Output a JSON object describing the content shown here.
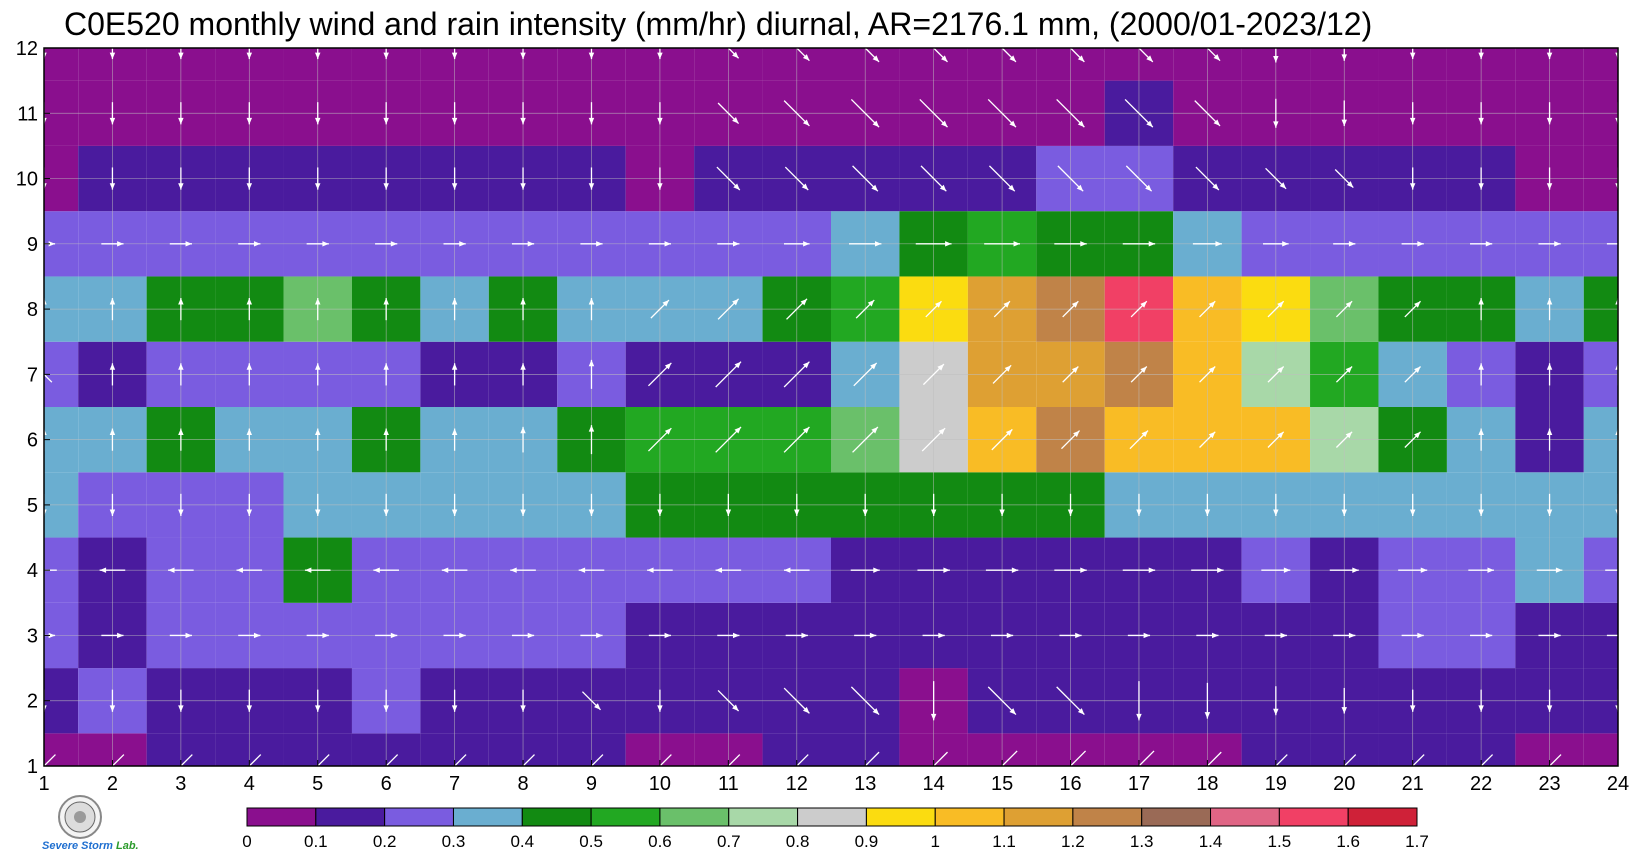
{
  "title": "C0E520 monthly wind and rain intensity (mm/hr) diurnal, AR=2176.1 mm, (2000/01-2023/12)",
  "chart_data": {
    "type": "heatmap",
    "title": "C0E520 monthly wind and rain intensity (mm/hr) diurnal, AR=2176.1 mm, (2000/01-2023/12)",
    "xlabel": "",
    "ylabel": "",
    "x_ticks": [
      1,
      2,
      3,
      4,
      5,
      6,
      7,
      8,
      9,
      10,
      11,
      12,
      13,
      14,
      15,
      16,
      17,
      18,
      19,
      20,
      21,
      22,
      23,
      24
    ],
    "y_ticks": [
      1,
      2,
      3,
      4,
      5,
      6,
      7,
      8,
      9,
      10,
      11,
      12
    ],
    "xlim": [
      1,
      24
    ],
    "ylim": [
      1,
      12
    ],
    "colorbar": {
      "levels": [
        0,
        0.1,
        0.2,
        0.3,
        0.4,
        0.5,
        0.6,
        0.7,
        0.8,
        0.9,
        1,
        1.1,
        1.2,
        1.3,
        1.4,
        1.5,
        1.6,
        1.7
      ],
      "labels": [
        "0",
        "0.1",
        "0.2",
        "0.3",
        "0.4",
        "0.5",
        "0.6",
        "0.7",
        "0.8",
        "0.9",
        "1",
        "1.1",
        "1.2",
        "1.3",
        "1.4",
        "1.5",
        "1.6",
        "1.7"
      ],
      "colors": [
        "#8a0f8e",
        "#4a1b9e",
        "#7a5ce0",
        "#6aaed0",
        "#128a12",
        "#22a822",
        "#6ac06a",
        "#a8d8a8",
        "#cccccc",
        "#fbdc10",
        "#f9bc25",
        "#dea033",
        "#c08348",
        "#9a6a56",
        "#e06585",
        "#f14065",
        "#cf2138"
      ]
    },
    "values": [
      [
        0.05,
        0.05,
        0.1,
        0.1,
        0.1,
        0.1,
        0.1,
        0.1,
        0.1,
        0.05,
        0.05,
        0.1,
        0.1,
        0.05,
        0.05,
        0.05,
        0.05,
        0.05,
        0.1,
        0.1,
        0.1,
        0.1,
        0.05,
        0.05
      ],
      [
        0.15,
        0.25,
        0.15,
        0.15,
        0.15,
        0.2,
        0.15,
        0.15,
        0.15,
        0.15,
        0.15,
        0.15,
        0.15,
        0.05,
        0.1,
        0.1,
        0.1,
        0.1,
        0.15,
        0.15,
        0.15,
        0.15,
        0.15,
        0.15
      ],
      [
        0.2,
        0.15,
        0.25,
        0.25,
        0.25,
        0.25,
        0.25,
        0.25,
        0.2,
        0.15,
        0.15,
        0.15,
        0.15,
        0.15,
        0.15,
        0.15,
        0.15,
        0.15,
        0.15,
        0.15,
        0.2,
        0.25,
        0.15,
        0.15
      ],
      [
        0.25,
        0.15,
        0.25,
        0.25,
        0.45,
        0.25,
        0.25,
        0.25,
        0.25,
        0.25,
        0.25,
        0.25,
        0.15,
        0.15,
        0.15,
        0.15,
        0.15,
        0.15,
        0.25,
        0.15,
        0.25,
        0.25,
        0.35,
        0.25
      ],
      [
        0.3,
        0.25,
        0.25,
        0.25,
        0.35,
        0.35,
        0.35,
        0.35,
        0.35,
        0.45,
        0.45,
        0.4,
        0.45,
        0.45,
        0.45,
        0.45,
        0.35,
        0.35,
        0.35,
        0.35,
        0.35,
        0.35,
        0.35,
        0.35
      ],
      [
        0.35,
        0.35,
        0.45,
        0.35,
        0.35,
        0.45,
        0.35,
        0.35,
        0.45,
        0.55,
        0.55,
        0.55,
        0.65,
        0.85,
        1.0,
        1.25,
        1.05,
        1.05,
        1.0,
        0.75,
        0.45,
        0.35,
        0.15,
        0.35
      ],
      [
        0.25,
        0.15,
        0.25,
        0.25,
        0.25,
        0.25,
        0.15,
        0.15,
        0.25,
        0.15,
        0.15,
        0.15,
        0.35,
        0.85,
        1.1,
        1.15,
        1.2,
        1.0,
        0.75,
        0.55,
        0.35,
        0.25,
        0.15,
        0.25
      ],
      [
        0.35,
        0.35,
        0.45,
        0.45,
        0.65,
        0.45,
        0.35,
        0.45,
        0.35,
        0.35,
        0.35,
        0.45,
        0.55,
        0.95,
        1.15,
        1.25,
        1.55,
        1.05,
        0.95,
        0.65,
        0.45,
        0.45,
        0.35,
        0.45
      ],
      [
        0.25,
        0.25,
        0.25,
        0.25,
        0.25,
        0.25,
        0.25,
        0.25,
        0.25,
        0.25,
        0.25,
        0.25,
        0.35,
        0.45,
        0.55,
        0.45,
        0.45,
        0.35,
        0.25,
        0.25,
        0.25,
        0.25,
        0.25,
        0.25
      ],
      [
        0.05,
        0.15,
        0.15,
        0.15,
        0.15,
        0.15,
        0.15,
        0.15,
        0.15,
        0.05,
        0.15,
        0.15,
        0.15,
        0.15,
        0.15,
        0.25,
        0.25,
        0.15,
        0.15,
        0.15,
        0.15,
        0.15,
        0.05,
        0.05
      ],
      [
        0.05,
        0.05,
        0.05,
        0.05,
        0.05,
        0.05,
        0.05,
        0.05,
        0.05,
        0.05,
        0.05,
        0.05,
        0.05,
        0.05,
        0.05,
        0.05,
        0.15,
        0.05,
        0.05,
        0.05,
        0.05,
        0.05,
        0.05,
        0.05
      ],
      [
        0.05,
        0.05,
        0.05,
        0.05,
        0.05,
        0.05,
        0.05,
        0.05,
        0.05,
        0.05,
        0.05,
        0.05,
        0.05,
        0.05,
        0.05,
        0.05,
        0.05,
        0.05,
        0.05,
        0.05,
        0.05,
        0.05,
        0.05,
        0.05
      ]
    ],
    "wind_u": [
      [
        -1,
        -1,
        -1,
        -1,
        -1,
        -1,
        -1,
        -1,
        -1,
        -1,
        -1,
        -1,
        -1,
        -1,
        -1,
        -1,
        -1,
        -1,
        -1,
        -1,
        -1,
        -1,
        -1,
        -1
      ],
      [
        0,
        0,
        0,
        0,
        0,
        0,
        0,
        0,
        1,
        0,
        1,
        1,
        1,
        0,
        1,
        1,
        0,
        0,
        0,
        0,
        0,
        0,
        0,
        0
      ],
      [
        1,
        1,
        1,
        1,
        1,
        1,
        1,
        1,
        1,
        1,
        1,
        1,
        1,
        1,
        1,
        1,
        1,
        1,
        1,
        1,
        1,
        1,
        1,
        1
      ],
      [
        -1,
        -1,
        -1,
        -1,
        -1,
        -1,
        -1,
        -1,
        -1,
        -1,
        -1,
        -1,
        1,
        1,
        1,
        1,
        1,
        1,
        1,
        1,
        1,
        1,
        1,
        1
      ],
      [
        0,
        0,
        0,
        0,
        0,
        0,
        0,
        0,
        0,
        0,
        0,
        0,
        0,
        0,
        0,
        0,
        0,
        0,
        0,
        0,
        0,
        0,
        0,
        0
      ],
      [
        0,
        0,
        0,
        0,
        0,
        0,
        0,
        0,
        0,
        1,
        1,
        1,
        1,
        1,
        1,
        1,
        1,
        1,
        1,
        1,
        1,
        0,
        0,
        0
      ],
      [
        -1,
        0,
        0,
        0,
        0,
        0,
        0,
        0,
        0,
        1,
        1,
        1,
        1,
        1,
        1,
        1,
        1,
        1,
        1,
        1,
        1,
        0,
        0,
        0
      ],
      [
        0,
        0,
        0,
        0,
        0,
        0,
        0,
        0,
        0,
        1,
        1,
        1,
        1,
        1,
        1,
        1,
        1,
        1,
        1,
        1,
        1,
        0,
        0,
        0
      ],
      [
        1,
        1,
        1,
        1,
        1,
        1,
        1,
        1,
        1,
        1,
        1,
        1,
        1,
        1,
        1,
        1,
        1,
        1,
        1,
        1,
        1,
        1,
        1,
        1
      ],
      [
        0,
        0,
        0,
        0,
        0,
        0,
        0,
        0,
        0,
        0,
        1,
        1,
        1,
        1,
        1,
        1,
        1,
        1,
        1,
        1,
        0,
        0,
        0,
        0
      ],
      [
        0,
        0,
        0,
        0,
        0,
        0,
        0,
        0,
        0,
        0,
        1,
        1,
        1,
        1,
        1,
        1,
        1,
        1,
        0,
        0,
        0,
        0,
        0,
        0
      ],
      [
        0,
        0,
        0,
        0,
        0,
        0,
        0,
        0,
        0,
        0,
        1,
        1,
        1,
        1,
        1,
        1,
        1,
        1,
        0,
        0,
        0,
        0,
        0,
        0
      ]
    ],
    "wind_v": [
      [
        -1,
        -1,
        -1,
        -1,
        -1,
        -1,
        -1,
        -1,
        -1,
        -1,
        -1,
        -1,
        -1,
        -1,
        -1,
        -1,
        -1,
        -1,
        -1,
        -1,
        -1,
        -1,
        -1,
        -1
      ],
      [
        -1,
        -1,
        -1,
        -1,
        -1,
        -1,
        -1,
        -1,
        -1,
        -1,
        -1,
        -1,
        -1,
        -1,
        -1,
        -1,
        -1,
        -1,
        -1,
        -1,
        -1,
        -1,
        -1,
        -1
      ],
      [
        0,
        0,
        0,
        0,
        0,
        0,
        0,
        0,
        0,
        0,
        0,
        0,
        0,
        0,
        0,
        0,
        0,
        0,
        0,
        0,
        0,
        0,
        0,
        0
      ],
      [
        0,
        0,
        0,
        0,
        0,
        0,
        0,
        0,
        0,
        0,
        0,
        0,
        0,
        0,
        0,
        0,
        0,
        0,
        0,
        0,
        0,
        0,
        0,
        0
      ],
      [
        -1,
        -1,
        -1,
        -1,
        -1,
        -1,
        -1,
        -1,
        -1,
        -1,
        -1,
        -1,
        -1,
        -1,
        -1,
        -1,
        -1,
        -1,
        -1,
        -1,
        -1,
        -1,
        -1,
        -1
      ],
      [
        1,
        1,
        1,
        1,
        1,
        1,
        1,
        1,
        1,
        1,
        1,
        1,
        1,
        1,
        1,
        1,
        1,
        1,
        1,
        1,
        1,
        1,
        1,
        1
      ],
      [
        1,
        1,
        1,
        1,
        1,
        1,
        1,
        1,
        1,
        1,
        1,
        1,
        1,
        1,
        1,
        1,
        1,
        1,
        1,
        1,
        1,
        1,
        1,
        1
      ],
      [
        1,
        1,
        1,
        1,
        1,
        1,
        1,
        1,
        1,
        1,
        1,
        1,
        1,
        1,
        1,
        1,
        1,
        1,
        1,
        1,
        1,
        1,
        1,
        1
      ],
      [
        0,
        0,
        0,
        0,
        0,
        0,
        0,
        0,
        0,
        0,
        0,
        0,
        0,
        0,
        0,
        0,
        0,
        0,
        0,
        0,
        0,
        0,
        0,
        0
      ],
      [
        -1,
        -1,
        -1,
        -1,
        -1,
        -1,
        -1,
        -1,
        -1,
        -1,
        -1,
        -1,
        -1,
        -1,
        -1,
        -1,
        -1,
        -1,
        -1,
        -1,
        -1,
        -1,
        -1,
        -1
      ],
      [
        -1,
        -1,
        -1,
        -1,
        -1,
        -1,
        -1,
        -1,
        -1,
        -1,
        -1,
        -1,
        -1,
        -1,
        -1,
        -1,
        -1,
        -1,
        -1,
        -1,
        -1,
        -1,
        -1,
        -1
      ],
      [
        -1,
        -1,
        -1,
        -1,
        -1,
        -1,
        -1,
        -1,
        -1,
        -1,
        -1,
        -1,
        -1,
        -1,
        -1,
        -1,
        -1,
        -1,
        -1,
        -1,
        -1,
        -1,
        -1,
        -1
      ]
    ],
    "wind_scale": [
      [
        0.6,
        0.6,
        0.6,
        0.6,
        0.6,
        0.6,
        0.6,
        0.6,
        0.6,
        0.6,
        0.6,
        0.6,
        0.8,
        0.8,
        0.9,
        0.9,
        0.9,
        0.8,
        0.6,
        0.6,
        0.6,
        0.6,
        0.6,
        0.6
      ],
      [
        0.3,
        0.3,
        0.3,
        0.3,
        0.3,
        0.3,
        0.3,
        0.3,
        0.4,
        0.3,
        0.5,
        0.7,
        0.8,
        0.8,
        0.8,
        0.8,
        0.8,
        0.7,
        0.5,
        0.4,
        0.3,
        0.3,
        0.3,
        0.3
      ],
      [
        0.3,
        0.3,
        0.3,
        0.3,
        0.3,
        0.3,
        0.3,
        0.3,
        0.3,
        0.3,
        0.3,
        0.3,
        0.3,
        0.3,
        0.3,
        0.3,
        0.3,
        0.3,
        0.3,
        0.3,
        0.3,
        0.3,
        0.3,
        0.3
      ],
      [
        0.4,
        0.4,
        0.4,
        0.4,
        0.4,
        0.4,
        0.4,
        0.4,
        0.4,
        0.4,
        0.4,
        0.4,
        0.5,
        0.6,
        0.6,
        0.6,
        0.6,
        0.6,
        0.5,
        0.5,
        0.5,
        0.4,
        0.4,
        0.4
      ],
      [
        0.3,
        0.3,
        0.3,
        0.3,
        0.3,
        0.3,
        0.3,
        0.3,
        0.3,
        0.3,
        0.3,
        0.3,
        0.3,
        0.3,
        0.3,
        0.3,
        0.3,
        0.3,
        0.3,
        0.3,
        0.3,
        0.3,
        0.3,
        0.3
      ],
      [
        0.3,
        0.3,
        0.3,
        0.3,
        0.3,
        0.3,
        0.3,
        0.4,
        0.5,
        0.6,
        0.7,
        0.7,
        0.7,
        0.6,
        0.5,
        0.4,
        0.4,
        0.3,
        0.3,
        0.3,
        0.3,
        0.3,
        0.3,
        0.3
      ],
      [
        0.3,
        0.3,
        0.3,
        0.3,
        0.3,
        0.3,
        0.3,
        0.3,
        0.5,
        0.6,
        0.7,
        0.7,
        0.6,
        0.5,
        0.4,
        0.3,
        0.3,
        0.3,
        0.3,
        0.3,
        0.3,
        0.3,
        0.3,
        0.3
      ],
      [
        0.3,
        0.3,
        0.3,
        0.3,
        0.3,
        0.3,
        0.3,
        0.3,
        0.3,
        0.4,
        0.5,
        0.5,
        0.4,
        0.3,
        0.3,
        0.3,
        0.3,
        0.3,
        0.3,
        0.3,
        0.3,
        0.3,
        0.3,
        0.3
      ],
      [
        0.3,
        0.3,
        0.3,
        0.3,
        0.3,
        0.3,
        0.3,
        0.3,
        0.3,
        0.3,
        0.3,
        0.4,
        0.6,
        0.7,
        0.7,
        0.6,
        0.6,
        0.5,
        0.4,
        0.3,
        0.3,
        0.3,
        0.3,
        0.3
      ],
      [
        0.3,
        0.3,
        0.3,
        0.3,
        0.3,
        0.3,
        0.3,
        0.3,
        0.3,
        0.3,
        0.6,
        0.6,
        0.7,
        0.7,
        0.7,
        0.7,
        0.7,
        0.6,
        0.5,
        0.4,
        0.3,
        0.3,
        0.3,
        0.3
      ],
      [
        0.3,
        0.3,
        0.3,
        0.3,
        0.3,
        0.3,
        0.3,
        0.3,
        0.3,
        0.3,
        0.5,
        0.7,
        0.8,
        0.8,
        0.8,
        0.8,
        0.8,
        0.7,
        0.5,
        0.4,
        0.3,
        0.3,
        0.3,
        0.3
      ],
      [
        0.3,
        0.3,
        0.3,
        0.3,
        0.3,
        0.3,
        0.3,
        0.3,
        0.3,
        0.3,
        0.5,
        0.7,
        0.8,
        0.8,
        0.8,
        0.8,
        0.8,
        0.7,
        0.5,
        0.4,
        0.3,
        0.3,
        0.3,
        0.3
      ]
    ],
    "grid": true,
    "legend": "colorbar-bottom"
  }
}
